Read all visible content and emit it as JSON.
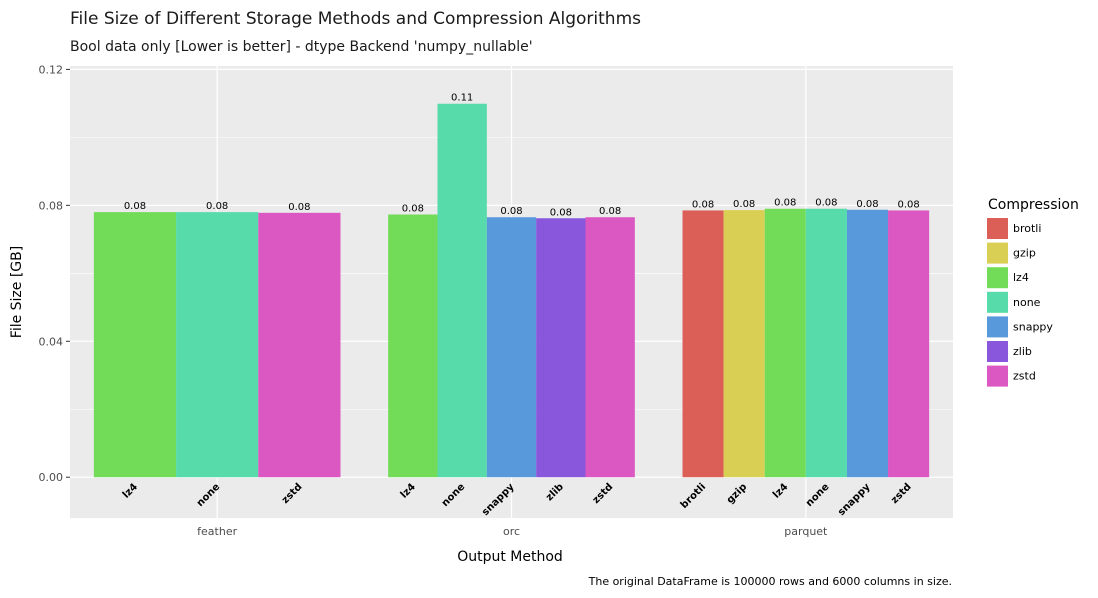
{
  "chart_data": {
    "type": "bar",
    "title": "File Size of Different Storage Methods and Compression Algorithms",
    "subtitle": "Bool data only [Lower is better] - dtype Backend 'numpy_nullable'",
    "xlabel": "Output Method",
    "ylabel": "File Size [GB]",
    "ylim": [
      -0.012,
      0.121
    ],
    "yticks": [
      0.0,
      0.04,
      0.08,
      0.12
    ],
    "ytick_labels": [
      "0.00",
      "0.04",
      "0.08",
      "0.12"
    ],
    "grid": true,
    "caption": "The original DataFrame is 100000 rows and 6000 columns in size.",
    "legend": {
      "title": "Compression",
      "position": "right",
      "items": [
        {
          "name": "brotli",
          "color": "#db5f57"
        },
        {
          "name": "gzip",
          "color": "#d9cf55"
        },
        {
          "name": "lz4",
          "color": "#72db57"
        },
        {
          "name": "none",
          "color": "#57dbaa"
        },
        {
          "name": "snappy",
          "color": "#5799db"
        },
        {
          "name": "zlib",
          "color": "#8857db"
        },
        {
          "name": "zstd",
          "color": "#db57c1"
        }
      ]
    },
    "groups": [
      {
        "name": "feather",
        "bars": [
          {
            "compression": "lz4",
            "value": 0.078,
            "label": "0.08"
          },
          {
            "compression": "none",
            "value": 0.078,
            "label": "0.08"
          },
          {
            "compression": "zstd",
            "value": 0.0778,
            "label": "0.08"
          }
        ]
      },
      {
        "name": "orc",
        "bars": [
          {
            "compression": "lz4",
            "value": 0.0773,
            "label": "0.08"
          },
          {
            "compression": "none",
            "value": 0.1099,
            "label": "0.11"
          },
          {
            "compression": "snappy",
            "value": 0.0765,
            "label": "0.08"
          },
          {
            "compression": "zlib",
            "value": 0.0762,
            "label": "0.08"
          },
          {
            "compression": "zstd",
            "value": 0.0765,
            "label": "0.08"
          }
        ]
      },
      {
        "name": "parquet",
        "bars": [
          {
            "compression": "brotli",
            "value": 0.0785,
            "label": "0.08"
          },
          {
            "compression": "gzip",
            "value": 0.0786,
            "label": "0.08"
          },
          {
            "compression": "lz4",
            "value": 0.079,
            "label": "0.08"
          },
          {
            "compression": "none",
            "value": 0.079,
            "label": "0.08"
          },
          {
            "compression": "snappy",
            "value": 0.0787,
            "label": "0.08"
          },
          {
            "compression": "zstd",
            "value": 0.0785,
            "label": "0.08"
          }
        ]
      }
    ]
  }
}
